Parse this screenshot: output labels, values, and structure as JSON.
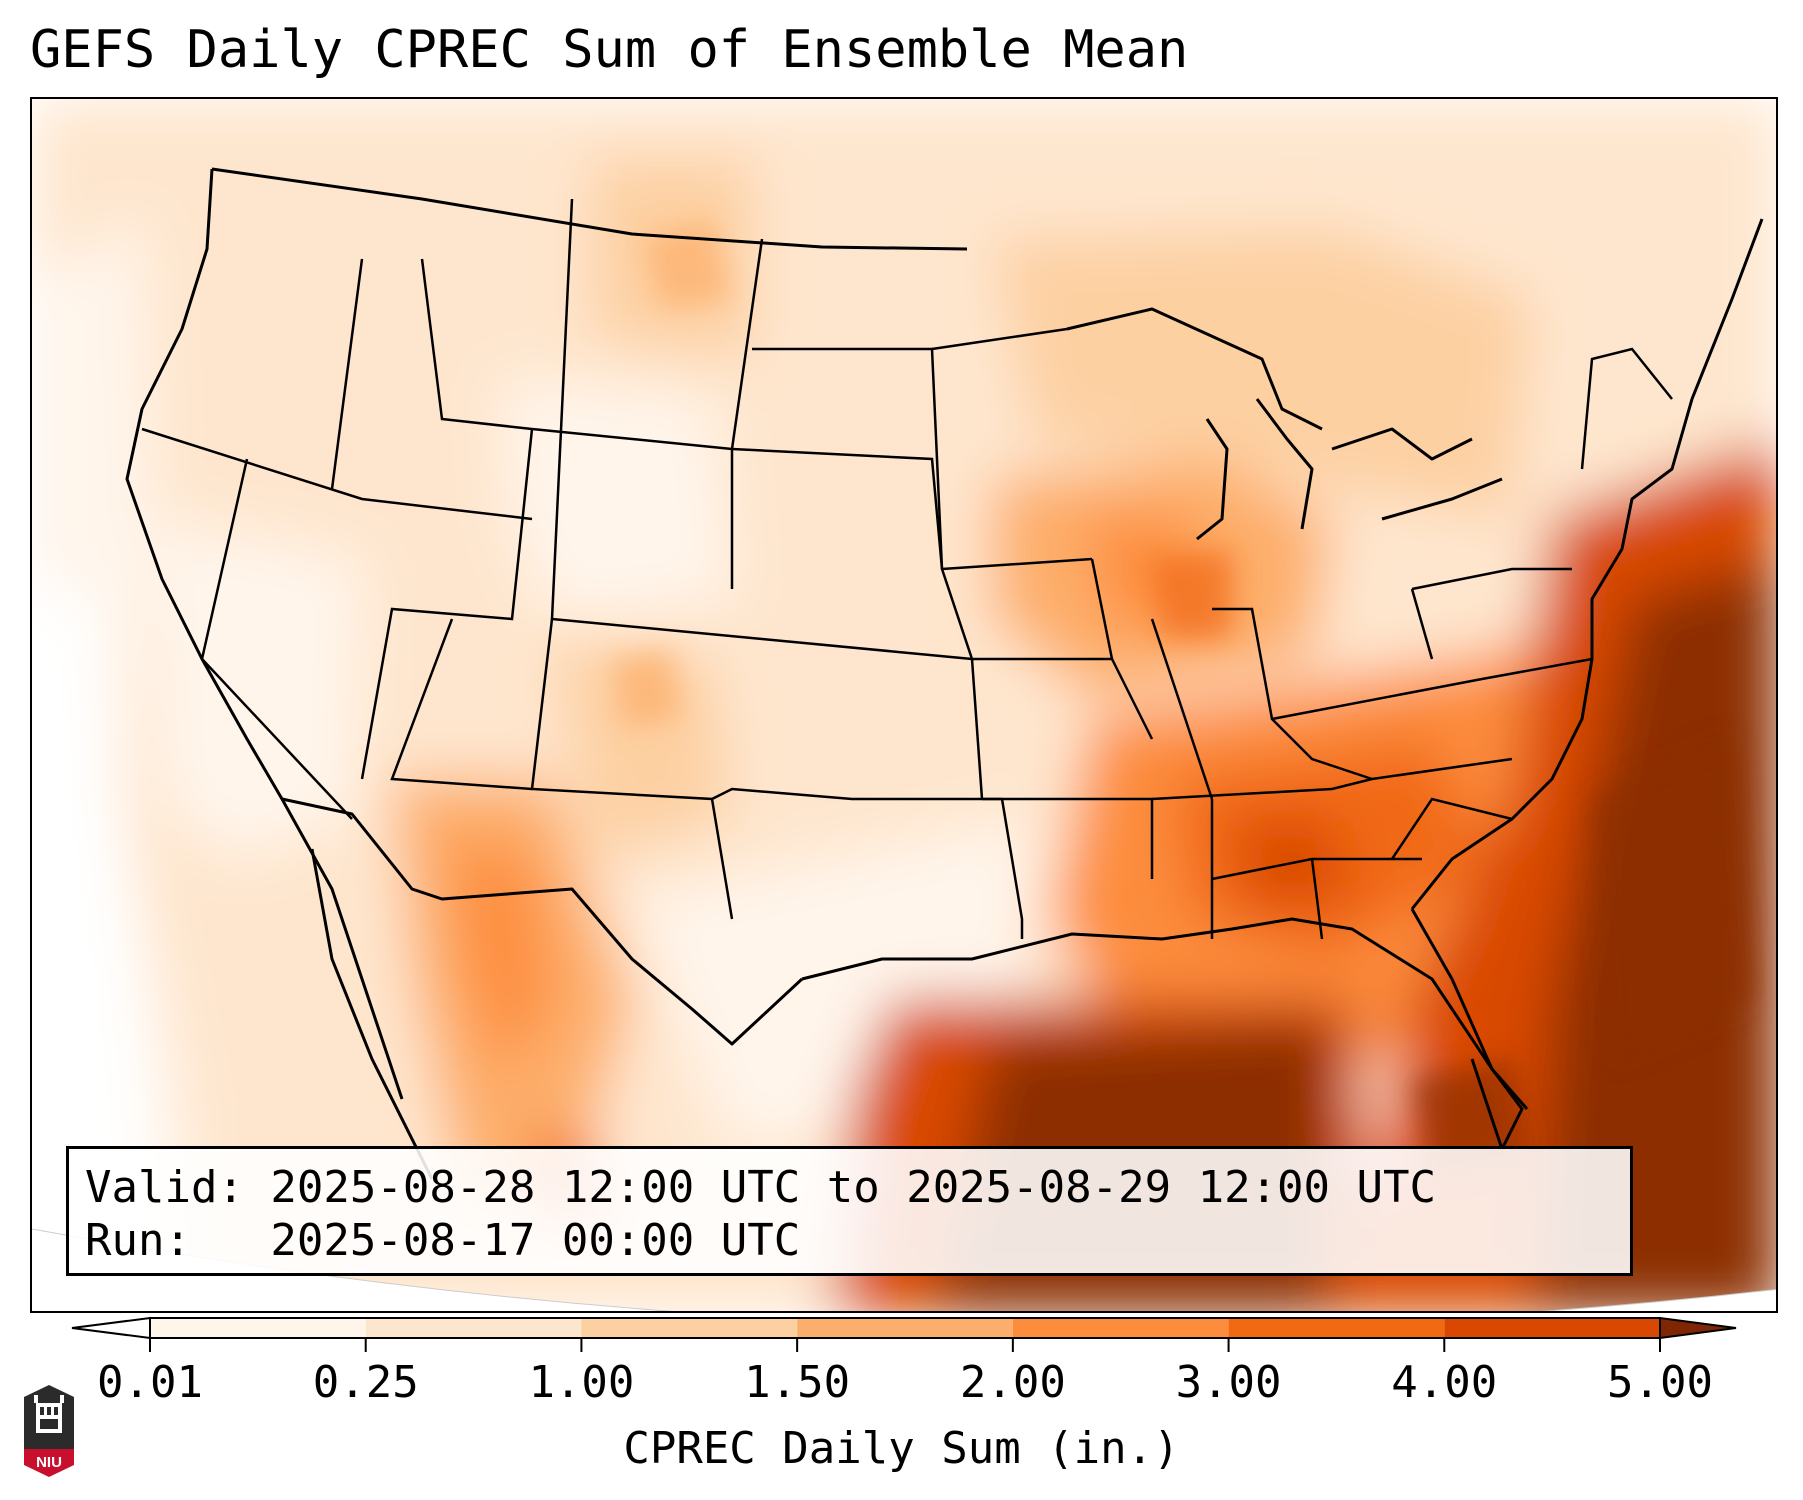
{
  "title": "GEFS Daily CPREC Sum of Ensemble Mean",
  "info": {
    "valid_line": "Valid: 2025-08-28 12:00 UTC to 2025-08-29 12:00 UTC",
    "run_line": "Run:   2025-08-17 00:00 UTC"
  },
  "colorbar": {
    "label": "CPREC Daily Sum (in.)",
    "ticks": [
      "0.01",
      "0.25",
      "1.00",
      "1.50",
      "2.00",
      "3.00",
      "4.00",
      "5.00"
    ],
    "colors": [
      "#fff5eb",
      "#fee6ce",
      "#fdd0a2",
      "#fdae6b",
      "#fd8d3c",
      "#f16913",
      "#d94801",
      "#8c2d04"
    ],
    "under_color": "#ffffff",
    "over_color": "#7f2704"
  },
  "logo": {
    "text": "NIU",
    "colors": {
      "dark": "#2b2b2b",
      "red": "#c8102e",
      "white": "#ffffff"
    }
  }
}
